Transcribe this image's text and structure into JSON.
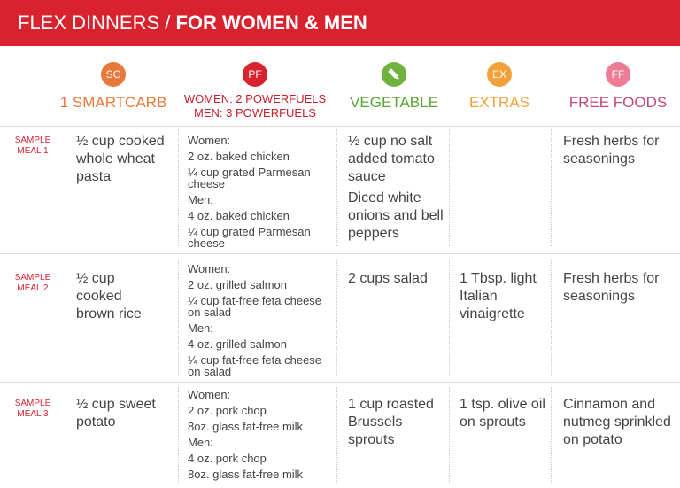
{
  "header": {
    "title_light": "FLEX DINNERS / ",
    "title_bold": "FOR WOMEN & MEN"
  },
  "columns": {
    "sc": {
      "badge": "SC",
      "label": "1 SMARTCARB",
      "color": "#e8793b",
      "text_color": "#e8793b"
    },
    "pf": {
      "badge": "PF",
      "label_line1": "WOMEN: 2 POWERFUELS",
      "label_line2": "MEN: 3 POWERFUELS",
      "color": "#d8232f",
      "text_color": "#c4202b"
    },
    "veg": {
      "badge_icon": "pencil-icon",
      "label": "VEGETABLE",
      "color": "#6fb33d",
      "text_color": "#5aa532"
    },
    "ex": {
      "badge": "EX",
      "label": "EXTRAS",
      "color": "#f3a23b",
      "text_color": "#eea33b"
    },
    "ff": {
      "badge": "FF",
      "label": "FREE FOODS",
      "color": "#ee7c96",
      "text_color": "#c2477a"
    }
  },
  "meals": [
    {
      "label_line1": "SAMPLE",
      "label_line2": "MEAL 1",
      "smartcarb": "½ cup cooked whole wheat pasta",
      "women_label": "Women:",
      "women_items": [
        "2 oz. baked chicken",
        "¼ cup grated Parmesan cheese"
      ],
      "men_label": "Men:",
      "men_items": [
        "4 oz. baked chicken",
        "¼ cup grated Parmesan cheese"
      ],
      "vegetable": [
        "½ cup no salt added tomato sauce",
        "Diced white onions and bell peppers"
      ],
      "extras": "",
      "free_foods": "Fresh herbs for seasonings"
    },
    {
      "label_line1": "SAMPLE",
      "label_line2": "MEAL 2",
      "smartcarb": "½ cup cooked brown rice",
      "women_label": "Women:",
      "women_items": [
        "2 oz. grilled salmon",
        "¼ cup fat-free feta cheese on salad"
      ],
      "men_label": "Men:",
      "men_items": [
        "4 oz. grilled salmon",
        "¼ cup fat-free feta cheese on salad"
      ],
      "vegetable": [
        "2 cups salad"
      ],
      "extras": "1 Tbsp. light Italian vinaigrette",
      "free_foods": "Fresh herbs for seasonings"
    },
    {
      "label_line1": "SAMPLE",
      "label_line2": "MEAL 3",
      "smartcarb": "½ cup sweet potato",
      "women_label": "Women:",
      "women_items": [
        "2 oz. pork chop",
        "8oz. glass fat-free milk"
      ],
      "men_label": "Men:",
      "men_items": [
        "4 oz. pork chop",
        "8oz. glass fat-free milk"
      ],
      "vegetable": [
        "1 cup roasted Brussels sprouts"
      ],
      "extras": "1 tsp. olive oil on sprouts",
      "free_foods": "Cinnamon and nutmeg sprinkled on potato"
    }
  ]
}
